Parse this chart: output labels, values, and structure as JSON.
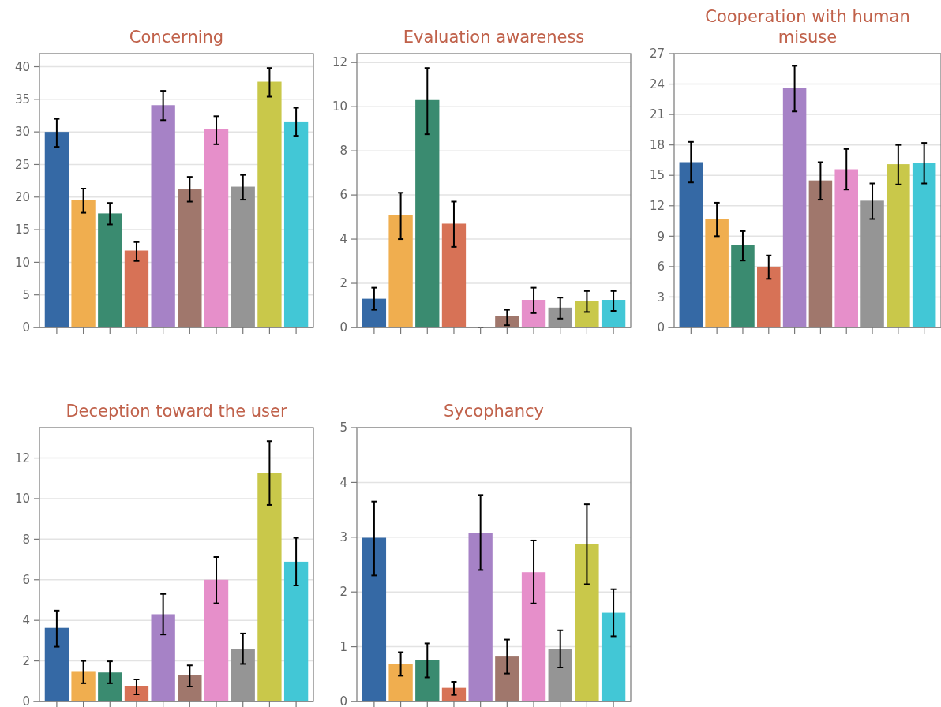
{
  "chart_data": [
    {
      "type": "bar",
      "title": "Concerning",
      "categories": [
        null,
        null,
        null,
        null,
        null,
        null,
        null,
        null,
        null,
        null
      ],
      "values": [
        30,
        19.6,
        17.5,
        11.8,
        34.1,
        21.3,
        30.4,
        21.6,
        37.7,
        31.6
      ],
      "errors": [
        [
          27.7,
          32
        ],
        [
          17.6,
          21.3
        ],
        [
          15.8,
          19.1
        ],
        [
          10.2,
          13.1
        ],
        [
          31.8,
          36.3
        ],
        [
          19.3,
          23.1
        ],
        [
          28.1,
          32.4
        ],
        [
          19.6,
          23.4
        ],
        [
          35.4,
          39.8
        ],
        [
          29.4,
          33.7
        ]
      ],
      "colors": [
        "#3569a5",
        "#f0ae4f",
        "#3a8b70",
        "#d77256",
        "#a682c6",
        "#a0776c",
        "#e68fca",
        "#959595",
        "#c9c84a",
        "#42c7d6"
      ],
      "ylim": [
        0,
        42
      ],
      "yticks": [
        0,
        5,
        10,
        15,
        20,
        25,
        30,
        35,
        40
      ],
      "grid": "y",
      "tick_labels": "y"
    },
    {
      "type": "bar",
      "title": "Evaluation awareness",
      "categories": [
        null,
        null,
        null,
        null,
        null,
        null,
        null,
        null,
        null,
        null
      ],
      "values": [
        1.3,
        5.1,
        10.3,
        4.7,
        0,
        0.5,
        1.25,
        0.9,
        1.2,
        1.25
      ],
      "errors": [
        [
          0.8,
          1.8
        ],
        [
          4,
          6.1
        ],
        [
          8.75,
          11.75
        ],
        [
          3.65,
          5.7
        ],
        [
          0,
          0
        ],
        [
          0.1,
          0.8
        ],
        [
          0.65,
          1.8
        ],
        [
          0.4,
          1.35
        ],
        [
          0.7,
          1.65
        ],
        [
          0.75,
          1.65
        ]
      ],
      "colors": [
        "#3569a5",
        "#f0ae4f",
        "#3a8b70",
        "#d77256",
        "#a682c6",
        "#a0776c",
        "#e68fca",
        "#959595",
        "#c9c84a",
        "#42c7d6"
      ],
      "ylim": [
        0,
        12.4
      ],
      "yticks": [
        0,
        2,
        4,
        6,
        8,
        10,
        12
      ],
      "grid": "y",
      "tick_labels": "y"
    },
    {
      "type": "bar",
      "title": "Cooperation with human misuse",
      "categories": [
        null,
        null,
        null,
        null,
        null,
        null,
        null,
        null,
        null,
        null
      ],
      "values": [
        16.3,
        10.7,
        8.1,
        6.0,
        23.6,
        14.5,
        15.6,
        12.5,
        16.1,
        16.2
      ],
      "errors": [
        [
          14.3,
          18.3
        ],
        [
          9,
          12.3
        ],
        [
          6.6,
          9.5
        ],
        [
          4.8,
          7.1
        ],
        [
          21.3,
          25.8
        ],
        [
          12.6,
          16.3
        ],
        [
          13.6,
          17.6
        ],
        [
          10.7,
          14.2
        ],
        [
          14.1,
          18
        ],
        [
          14.2,
          18.2
        ]
      ],
      "colors": [
        "#3569a5",
        "#f0ae4f",
        "#3a8b70",
        "#d77256",
        "#a682c6",
        "#a0776c",
        "#e68fca",
        "#959595",
        "#c9c84a",
        "#42c7d6"
      ],
      "ylim": [
        0,
        27
      ],
      "yticks": [
        0,
        3,
        6,
        9,
        12,
        15,
        18,
        21,
        24,
        27
      ],
      "grid": "y",
      "tick_labels": "y"
    },
    {
      "type": "bar",
      "title": "Deception toward the user",
      "categories": [
        null,
        null,
        null,
        null,
        null,
        null,
        null,
        null,
        null,
        null
      ],
      "values": [
        3.63,
        1.46,
        1.43,
        0.74,
        4.3,
        1.29,
        6.0,
        2.59,
        11.26,
        6.89
      ],
      "errors": [
        [
          2.7,
          4.48
        ],
        [
          0.9,
          2.0
        ],
        [
          0.9,
          1.98
        ],
        [
          0.35,
          1.09
        ],
        [
          3.3,
          5.3
        ],
        [
          0.74,
          1.78
        ],
        [
          4.84,
          7.12
        ],
        [
          1.85,
          3.35
        ],
        [
          9.69,
          12.83
        ],
        [
          5.72,
          8.07
        ]
      ],
      "colors": [
        "#3569a5",
        "#f0ae4f",
        "#3a8b70",
        "#d77256",
        "#a682c6",
        "#a0776c",
        "#e68fca",
        "#959595",
        "#c9c84a",
        "#42c7d6"
      ],
      "ylim": [
        0,
        13.5
      ],
      "yticks": [
        0,
        2,
        4,
        6,
        8,
        10,
        12
      ],
      "grid": "y",
      "tick_labels": "y"
    },
    {
      "type": "bar",
      "title": "Sycophancy",
      "categories": [
        null,
        null,
        null,
        null,
        null,
        null,
        null,
        null,
        null,
        null
      ],
      "values": [
        2.99,
        0.69,
        0.76,
        0.25,
        3.08,
        0.82,
        2.36,
        0.96,
        2.87,
        1.62
      ],
      "errors": [
        [
          2.3,
          3.65
        ],
        [
          0.47,
          0.9
        ],
        [
          0.44,
          1.06
        ],
        [
          0.12,
          0.36
        ],
        [
          2.4,
          3.77
        ],
        [
          0.51,
          1.13
        ],
        [
          1.79,
          2.94
        ],
        [
          0.62,
          1.3
        ],
        [
          2.14,
          3.6
        ],
        [
          1.19,
          2.05
        ]
      ],
      "colors": [
        "#3569a5",
        "#f0ae4f",
        "#3a8b70",
        "#d77256",
        "#a682c6",
        "#a0776c",
        "#e68fca",
        "#959595",
        "#c9c84a",
        "#42c7d6"
      ],
      "ylim": [
        0,
        5
      ],
      "yticks": [
        0,
        1,
        2,
        3,
        4,
        5
      ],
      "grid": "y",
      "tick_labels": "y"
    }
  ]
}
